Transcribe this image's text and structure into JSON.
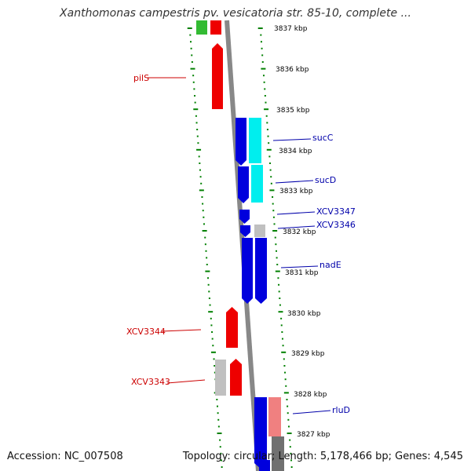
{
  "title": "Xanthomonas campestris pv. vesicatoria str. 85-10, complete ...",
  "footer": {
    "accession": "Accession: NC_007508",
    "summary": "Topology: circular; Length: 5,178,466 bp; Genes: 4,545"
  },
  "colors": {
    "forward_gene": "#ee0000",
    "reverse_gene": "#0000dd",
    "reverse_gene_light": "#00eeee",
    "pseudo": "#c0c0c0",
    "backbone": "#888888",
    "ticks": "#008000",
    "forward_label": "#cc0000",
    "reverse_label": "#0000aa"
  },
  "position_labels": [
    {
      "text": "3837 kbp",
      "kbp": 3837
    },
    {
      "text": "3836 kbp",
      "kbp": 3836
    },
    {
      "text": "3835 kbp",
      "kbp": 3835
    },
    {
      "text": "3834 kbp",
      "kbp": 3834
    },
    {
      "text": "3833 kbp",
      "kbp": 3833
    },
    {
      "text": "3832 kbp",
      "kbp": 3832
    },
    {
      "text": "3831 kbp",
      "kbp": 3831
    },
    {
      "text": "3830 kbp",
      "kbp": 3830
    },
    {
      "text": "3829 kbp",
      "kbp": 3829
    },
    {
      "text": "3828 kbp",
      "kbp": 3828
    },
    {
      "text": "3827 kbp",
      "kbp": 3827
    }
  ],
  "genes": [
    {
      "name": "pilS",
      "strand": "+",
      "start_kbp": 3835.96,
      "end_kbp": 3835.0,
      "labeled": true
    },
    {
      "name": "sucC",
      "strand": "-",
      "start_kbp": 3834.52,
      "end_kbp": 3833.38,
      "labeled": true
    },
    {
      "name": "sucD",
      "strand": "-",
      "start_kbp": 3833.36,
      "end_kbp": 3832.54,
      "labeled": true
    },
    {
      "name": "XCV3347",
      "strand": "-",
      "start_kbp": 3832.36,
      "end_kbp": 3832.06,
      "labeled": true
    },
    {
      "name": "XCV3346",
      "strand": "-",
      "start_kbp": 3832.04,
      "end_kbp": 3831.78,
      "labeled": true
    },
    {
      "name": "nadE",
      "strand": "-",
      "start_kbp": 3831.76,
      "end_kbp": 3830.24,
      "labeled": true
    },
    {
      "name": "XCV3344",
      "strand": "+",
      "start_kbp": 3830.16,
      "end_kbp": 3829.2,
      "labeled": true
    },
    {
      "name": "XCV3343",
      "strand": "+",
      "start_kbp": 3828.92,
      "end_kbp": 3828.02,
      "labeled": true
    },
    {
      "name": "rluD",
      "strand": "-",
      "start_kbp": 3827.9,
      "end_kbp": 3826.9,
      "labeled": true
    }
  ]
}
